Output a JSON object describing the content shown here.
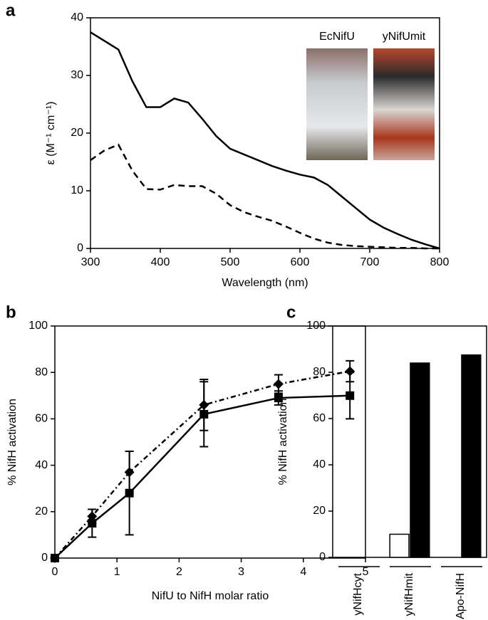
{
  "chart_data": [
    {
      "type": "line",
      "panel_label": "a",
      "x_label": "Wavelength (nm)",
      "y_label": "ε (M⁻¹ cm⁻¹)",
      "annotations": [
        "EcNifU",
        "yNifUmit"
      ],
      "x": [
        300,
        320,
        340,
        360,
        380,
        400,
        420,
        440,
        460,
        480,
        500,
        520,
        540,
        560,
        580,
        600,
        620,
        640,
        660,
        680,
        700,
        720,
        740,
        760,
        780,
        800
      ],
      "series": [
        {
          "color": "#000000",
          "style": "solid",
          "values": [
            37.5,
            36,
            34.5,
            29,
            24.5,
            24.5,
            26,
            25.3,
            22.5,
            19.5,
            17.3,
            16.3,
            15.3,
            14.3,
            13.5,
            12.8,
            12.3,
            11,
            9,
            7,
            5,
            3.6,
            2.5,
            1.5,
            0.7,
            0
          ]
        },
        {
          "color": "#000000",
          "style": "dashed",
          "values": [
            15.3,
            17,
            18,
            13.5,
            10.3,
            10.2,
            11,
            10.8,
            10.8,
            9.5,
            7.5,
            6.3,
            5.5,
            4.8,
            3.8,
            2.7,
            1.7,
            1.0,
            0.6,
            0.4,
            0.3,
            0.2,
            0.1,
            0.1,
            0,
            0
          ]
        }
      ],
      "xlim": [
        300,
        800
      ],
      "xticks": [
        300,
        400,
        500,
        600,
        700,
        800
      ],
      "ylim": [
        0,
        40
      ],
      "yticks": [
        0,
        10,
        20,
        30,
        40
      ]
    },
    {
      "type": "line",
      "panel_label": "b",
      "x_label": "NifU to NifH molar ratio",
      "y_label": "% NifH activation",
      "x": [
        0,
        0.6,
        1.2,
        2.4,
        3.6,
        4.75
      ],
      "series": [
        {
          "color": "#000000",
          "style": "solid",
          "marker": "square",
          "values": [
            0,
            15,
            28,
            62,
            69,
            70
          ],
          "errors": [
            0,
            6,
            18,
            14,
            3,
            10
          ]
        },
        {
          "color": "#000000",
          "style": "dashdot",
          "marker": "diamond",
          "values": [
            0,
            18,
            37,
            66,
            75,
            80.5
          ],
          "errors": [
            0,
            3,
            9,
            11,
            4,
            4.5
          ]
        }
      ],
      "xlim": [
        0,
        5
      ],
      "xticks": [
        0,
        1,
        2,
        3,
        4,
        5
      ],
      "ylim": [
        0,
        100
      ],
      "yticks": [
        0,
        20,
        40,
        60,
        80,
        100
      ]
    },
    {
      "type": "bar",
      "panel_label": "c",
      "y_label": "% NifH activation",
      "categories": [
        "yNifHcyt",
        "yNifHmit",
        "Apo-NifH"
      ],
      "series": [
        {
          "color": "#ffffff",
          "values": [
            0,
            10,
            0
          ]
        },
        {
          "color": "#000000",
          "values": [
            0,
            84,
            87.5
          ]
        }
      ],
      "ylim": [
        0,
        100
      ],
      "yticks": [
        0,
        20,
        40,
        60,
        80,
        100
      ]
    }
  ]
}
